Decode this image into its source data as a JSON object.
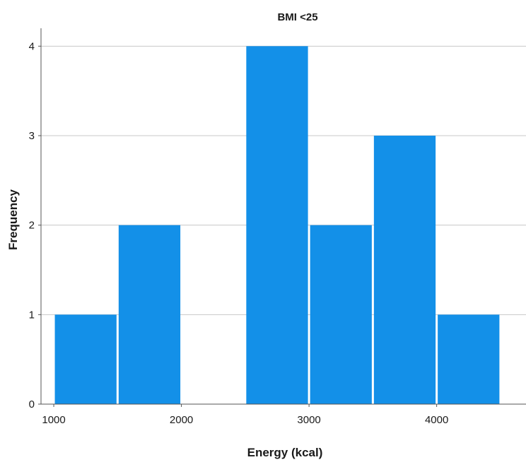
{
  "chart_data": {
    "type": "bar",
    "title": "BMI <25",
    "xlabel": "Energy (kcal)",
    "ylabel": "Frequency",
    "bin_width": 500,
    "bins": [
      {
        "x0": 1000,
        "x1": 1500,
        "count": 1
      },
      {
        "x0": 1500,
        "x1": 2000,
        "count": 2
      },
      {
        "x0": 2000,
        "x1": 2500,
        "count": 0
      },
      {
        "x0": 2500,
        "x1": 3000,
        "count": 4
      },
      {
        "x0": 3000,
        "x1": 3500,
        "count": 2
      },
      {
        "x0": 3500,
        "x1": 4000,
        "count": 3
      },
      {
        "x0": 4000,
        "x1": 4500,
        "count": 1
      }
    ],
    "x_ticks": [
      1000,
      2000,
      3000,
      4000
    ],
    "y_ticks": [
      0,
      1,
      2,
      3,
      4
    ],
    "xlim": [
      900,
      4700
    ],
    "ylim": [
      0,
      4.2
    ],
    "grid": "horizontal",
    "bar_color": "#1390e8",
    "gridline_color": "#c8c8c8"
  }
}
